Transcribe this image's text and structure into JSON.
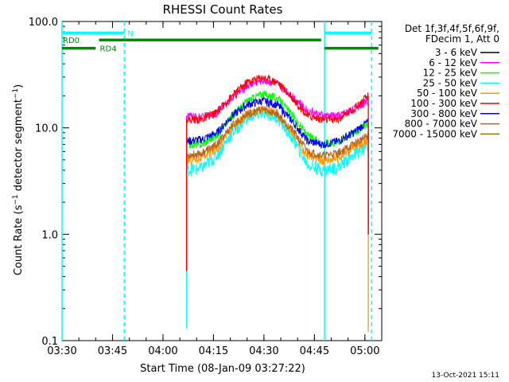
{
  "chart_data": {
    "type": "line",
    "title": "RHESSI Count Rates",
    "xlabel": "Start Time (08-Jan-09 03:27:22)",
    "ylabel_main": "Count Rate (s",
    "ylabel_sup1": "−1",
    "ylabel_mid": " detector segment",
    "ylabel_sup2": "−1",
    "ylabel_end": ")",
    "y_scale": "log",
    "ylim": [
      0.1,
      100
    ],
    "xlim_minutes": [
      3.0,
      98.0
    ],
    "x_ticks": [
      {
        "minute": 3,
        "label": "03:30"
      },
      {
        "minute": 18,
        "label": "03:45"
      },
      {
        "minute": 33,
        "label": "04:00"
      },
      {
        "minute": 48,
        "label": "04:15"
      },
      {
        "minute": 63,
        "label": "04:30"
      },
      {
        "minute": 78,
        "label": "04:45"
      },
      {
        "minute": 93,
        "label": "05:00"
      }
    ],
    "y_ticks": [
      {
        "value": 0.1,
        "label": "0.1"
      },
      {
        "value": 1,
        "label": "1.0"
      },
      {
        "value": 10,
        "label": "10.0"
      },
      {
        "value": 100,
        "label": "100.0"
      }
    ],
    "legend_header": [
      "Det 1f,3f,4f,5f,6f,9f,",
      "FDecim 1, Att 0"
    ],
    "legend_position": "right",
    "series": [
      {
        "name": "3 - 6 keV",
        "color": "#000000",
        "values": []
      },
      {
        "name": "6 - 12 keV",
        "color": "#ff00ff",
        "values": [
          13.0,
          12.5,
          14.0,
          19.0,
          25.0,
          28.0,
          26.0,
          20.0,
          14.5,
          13.0,
          13.0,
          15.0,
          18.0
        ]
      },
      {
        "name": "12 - 25 keV",
        "color": "#00ff00",
        "values": [
          7.0,
          7.0,
          8.5,
          13.0,
          18.0,
          21.0,
          19.0,
          13.0,
          8.5,
          7.0,
          7.5,
          9.0,
          11.0
        ]
      },
      {
        "name": "25 - 50 keV",
        "color": "#00ffff",
        "values": [
          4.0,
          4.2,
          5.5,
          9.0,
          12.5,
          14.0,
          12.5,
          8.0,
          4.5,
          4.0,
          4.3,
          5.5,
          7.0
        ]
      },
      {
        "name": "50 - 100 keV",
        "color": "#ff9900",
        "values": [
          5.0,
          5.3,
          6.5,
          10.0,
          13.5,
          15.0,
          13.5,
          9.0,
          5.5,
          5.0,
          5.3,
          6.5,
          8.0
        ]
      },
      {
        "name": "100 - 300 keV",
        "color": "#ff0000",
        "values": [
          12.0,
          12.0,
          14.0,
          20.0,
          27.0,
          30.0,
          27.0,
          19.0,
          13.0,
          12.0,
          12.0,
          15.0,
          20.0
        ]
      },
      {
        "name": "300 - 800 keV",
        "color": "#0000ff",
        "values": [
          7.5,
          7.8,
          9.0,
          13.0,
          16.5,
          18.0,
          16.5,
          11.5,
          7.5,
          7.0,
          7.5,
          9.0,
          11.5
        ]
      },
      {
        "name": "800 - 7000 keV",
        "color": "#b5651d",
        "values": [
          5.5,
          5.8,
          7.0,
          10.5,
          13.5,
          15.0,
          13.5,
          9.5,
          6.0,
          5.5,
          5.8,
          7.0,
          8.5
        ]
      },
      {
        "name": "7000 - 15000 keV",
        "color": "#808000",
        "values": []
      }
    ],
    "series_x_minutes": [
      40.0,
      44.5,
      49.0,
      53.5,
      58.0,
      62.5,
      67.0,
      71.5,
      76.0,
      80.5,
      85.0,
      89.5,
      94.0
    ],
    "flags": [
      {
        "label": "N",
        "color": "#00ffff",
        "value": 78.0,
        "start": 3.0,
        "end": 21.5,
        "label_at": 22.2
      },
      {
        "label": "N",
        "color": "#00ffff",
        "value": 78.0,
        "start": 81.0,
        "end": 95.0,
        "label_at": null
      },
      {
        "label": "RD0",
        "color": "#008800",
        "value": 67.0,
        "start": 14.0,
        "end": 80.0,
        "label_at": 3.0
      },
      {
        "label": "RD4",
        "color": "#008800",
        "value": 56.0,
        "start": 3.0,
        "end": 13.0,
        "label_at": 14.0
      },
      {
        "label": "RD4",
        "color": "#008800",
        "value": 56.0,
        "start": 81.0,
        "end": 97.0,
        "label_at": null
      }
    ],
    "vlines": [
      {
        "minute": 3.0,
        "style": "solid",
        "color": "#00ffff"
      },
      {
        "minute": 21.5,
        "style": "dashed",
        "color": "#00ffff"
      },
      {
        "minute": 81.0,
        "style": "solid",
        "color": "#00ffff"
      },
      {
        "minute": 95.0,
        "style": "dashed",
        "color": "#00ffff"
      }
    ]
  },
  "footer_timestamp": "13-Oct-2021 15:11"
}
